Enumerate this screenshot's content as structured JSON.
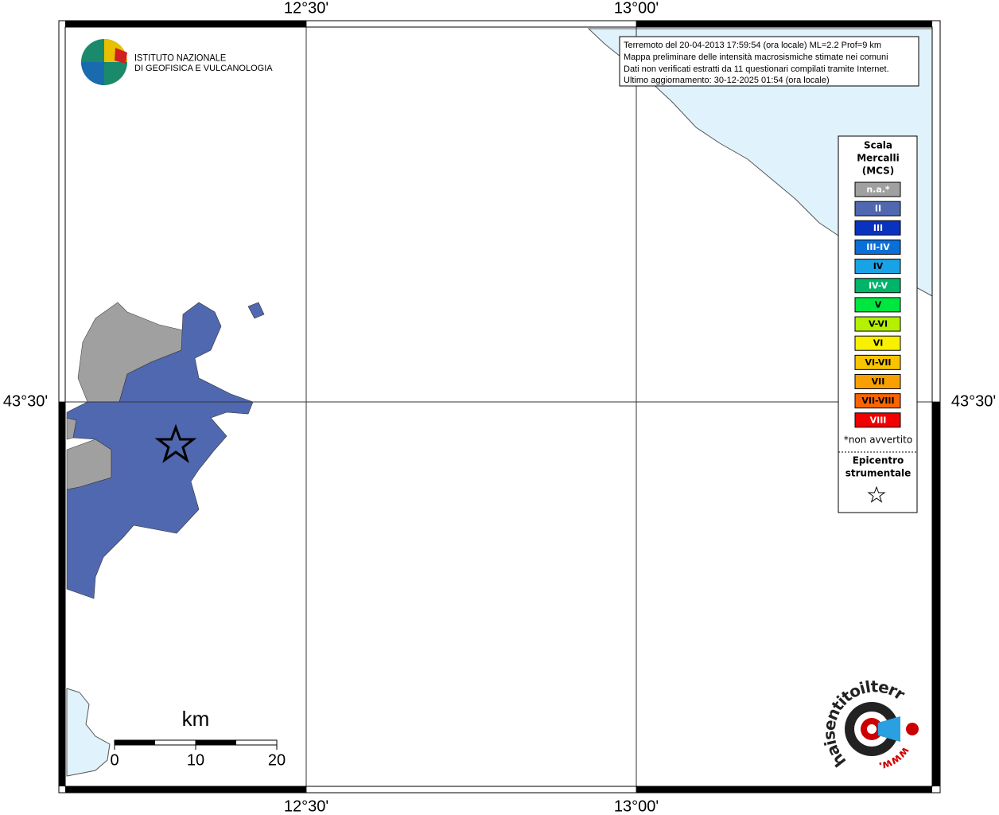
{
  "map": {
    "lon_labels": [
      "12°30'",
      "13°00'"
    ],
    "lat_labels": [
      "43°30'"
    ]
  },
  "info_box": {
    "lines": [
      "Terremoto del 20-04-2013 17:59:54 (ora locale) ML=2.2 Prof=9 km",
      "Mappa preliminare delle intensità macrosismiche stimate nei comuni",
      "Dati non verificati estratti da 11 questionari compilati tramite Internet.",
      "Ultimo aggiornamento: 30-12-2025 01:54 (ora locale)"
    ]
  },
  "logo": {
    "lines": [
      "ISTITUTO NAZIONALE",
      "DI GEOFISICA E VULCANOLOGIA"
    ]
  },
  "legend": {
    "title_lines": [
      "Scala",
      "Mercalli",
      "(MCS)"
    ],
    "items": [
      {
        "label": "n.a.*",
        "color": "#a0a0a0"
      },
      {
        "label": "II",
        "color": "#5068b0"
      },
      {
        "label": "III",
        "color": "#0a32c0"
      },
      {
        "label": "III-IV",
        "color": "#0a6fd8"
      },
      {
        "label": "IV",
        "color": "#1aa2e6"
      },
      {
        "label": "IV-V",
        "color": "#00b46a"
      },
      {
        "label": "V",
        "color": "#00e640"
      },
      {
        "label": "V-VI",
        "color": "#b4f000"
      },
      {
        "label": "VI",
        "color": "#f8f000"
      },
      {
        "label": "VI-VII",
        "color": "#f8c400"
      },
      {
        "label": "VII",
        "color": "#f8a000"
      },
      {
        "label": "VII-VIII",
        "color": "#f86400"
      },
      {
        "label": "VIII",
        "color": "#f00000"
      }
    ],
    "note": "*non avvertito",
    "epicenter_lines": [
      "Epicentro",
      "strumentale"
    ]
  },
  "scale_bar": {
    "unit": "km",
    "ticks": [
      "0",
      "10",
      "20"
    ]
  },
  "website": {
    "prefix": "www.",
    "name": "haisentitoilterremoto.it"
  }
}
